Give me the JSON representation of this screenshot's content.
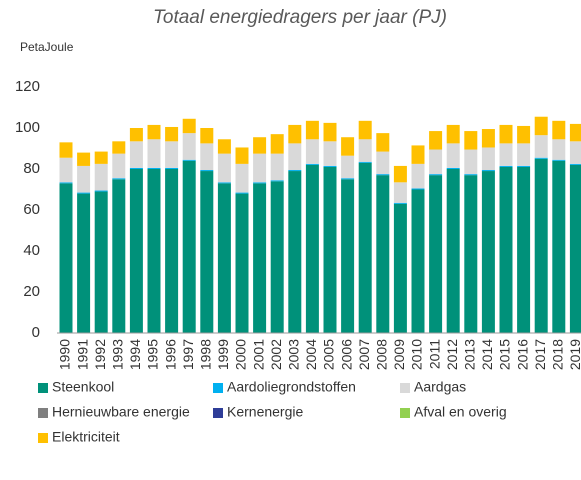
{
  "chart_data": {
    "type": "stacked-bar",
    "title": "Totaal energiedragers per jaar (PJ)",
    "y_label": "PetaJoule",
    "categories": [
      "1990",
      "1991",
      "1992",
      "1993",
      "1994",
      "1995",
      "1996",
      "1997",
      "1998",
      "1999",
      "2000",
      "2001",
      "2002",
      "2003",
      "2004",
      "2005",
      "2006",
      "2007",
      "2008",
      "2009",
      "2010",
      "2011",
      "2012",
      "2013",
      "2014",
      "2015",
      "2016",
      "2017",
      "2018",
      "2019"
    ],
    "series": [
      {
        "name": "Steenkool",
        "color": "#00917a",
        "values": [
          73,
          68,
          69,
          75,
          80,
          80,
          80,
          84,
          79,
          73,
          68,
          73,
          74,
          79,
          82,
          81,
          75,
          83,
          77,
          63,
          70,
          77,
          80,
          77,
          79,
          81,
          81,
          85,
          84,
          82
        ]
      },
      {
        "name": "Aardoliegrondstoffen",
        "color": "#00b0f0",
        "values": [
          0.5,
          0.5,
          0.5,
          0.5,
          0.5,
          0.5,
          0.5,
          0.5,
          0.5,
          0.5,
          0.5,
          0.5,
          0.5,
          0.5,
          0.5,
          0.5,
          0.5,
          0.5,
          0.5,
          0.5,
          0.5,
          0.5,
          0.5,
          0.5,
          0.5,
          0.5,
          0.5,
          0.5,
          0.5,
          0.5
        ]
      },
      {
        "name": "Aardgas",
        "color": "#d9d9d9",
        "values": [
          12,
          13,
          13,
          12,
          13,
          14,
          13,
          13,
          13,
          14,
          14,
          14,
          13,
          13,
          12,
          12,
          11,
          11,
          11,
          10,
          12,
          12,
          12,
          12,
          11,
          11,
          11,
          11,
          10,
          11
        ]
      },
      {
        "name": "Hernieuwbare energie",
        "color": "#7f7f7f",
        "values": [
          0,
          0,
          0,
          0,
          0,
          0,
          0,
          0,
          0,
          0,
          0,
          0,
          0,
          0,
          0,
          0,
          0,
          0,
          0,
          0,
          0,
          0,
          0,
          0,
          0,
          0,
          0,
          0,
          0,
          0
        ]
      },
      {
        "name": "Kernenergie",
        "color": "#2e3d98",
        "values": [
          0,
          0,
          0,
          0,
          0,
          0,
          0,
          0,
          0,
          0,
          0,
          0,
          0,
          0,
          0,
          0,
          0,
          0,
          0,
          0,
          0,
          0,
          0,
          0,
          0,
          0,
          0,
          0,
          0,
          0
        ]
      },
      {
        "name": "Afval en overig",
        "color": "#92d050",
        "values": [
          0,
          0,
          0,
          0,
          0,
          0,
          0,
          0,
          0,
          0,
          0,
          0,
          0,
          0,
          0,
          0,
          0,
          0,
          0,
          0,
          0,
          0,
          0,
          0,
          0,
          0,
          0,
          0,
          0,
          0
        ]
      },
      {
        "name": "Elektriciteit",
        "color": "#ffc000",
        "values": [
          7.5,
          6.5,
          6,
          6,
          6.5,
          7,
          7,
          7,
          7.5,
          7,
          8,
          8,
          9.5,
          9,
          9,
          9,
          9,
          9,
          9,
          8,
          9,
          9,
          9,
          9,
          9,
          9,
          8.5,
          9,
          9,
          8.5
        ]
      }
    ],
    "ylim": [
      0,
      120
    ],
    "yticks": [
      0,
      20,
      40,
      60,
      80,
      100,
      120
    ],
    "grid": false
  }
}
